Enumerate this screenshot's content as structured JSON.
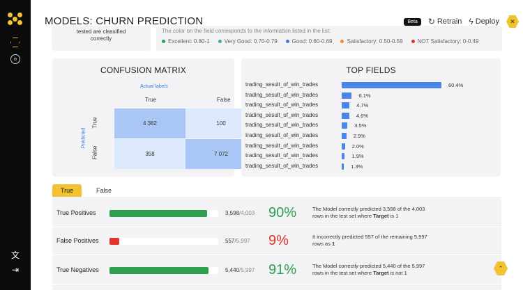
{
  "app": {
    "title": "MODELS: CHURN PREDICTION"
  },
  "nav": {
    "logo": "logo-icon",
    "items": [
      "list-hex-icon",
      "model-hex-icon"
    ],
    "bottom": [
      "translate-icon",
      "logout-icon"
    ]
  },
  "header": {
    "beta": "Beta",
    "retrain": "Retrain",
    "deploy": "Deploy"
  },
  "info_card": {
    "text": "tested are classified correctly"
  },
  "legend": {
    "title": "The color on the field corresponds to the information listed in the list:",
    "items": [
      {
        "label": "Excellent: 0.80-1",
        "color": "#2e9e4f"
      },
      {
        "label": "Very Good: 0.70-0.79",
        "color": "#3fa7a0"
      },
      {
        "label": "Good: 0.60-0.69",
        "color": "#3a78e0"
      },
      {
        "label": "Satisfactory: 0.50-0.59",
        "color": "#f08a2c"
      },
      {
        "label": "NOT Satisfactory: 0-0.49",
        "color": "#e0342c"
      }
    ]
  },
  "confusion_matrix": {
    "title": "CONFUSION MATRIX",
    "actual_label": "Actual labels",
    "predicted_label": "Predicted",
    "columns": [
      "True",
      "False"
    ],
    "rows": [
      "True",
      "False"
    ],
    "cells": [
      [
        "4 362",
        "100"
      ],
      [
        "358",
        "7 072"
      ]
    ],
    "cell_colors": [
      [
        "#a9c6f4",
        "#dce8fb"
      ],
      [
        "#dce8fb",
        "#a9c6f4"
      ]
    ]
  },
  "top_fields": {
    "title": "TOP FIELDS",
    "items": [
      {
        "label": "trading_sesult_of_win_trades",
        "value": 60.4,
        "text": "60.4%"
      },
      {
        "label": "trading_sesult_of_win_trades",
        "value": 6.1,
        "text": "6.1%"
      },
      {
        "label": "trading_sesult_of_win_trades",
        "value": 4.7,
        "text": "4.7%"
      },
      {
        "label": "trading_sesult_of_win_trades",
        "value": 4.6,
        "text": "4.6%"
      },
      {
        "label": "trading_sesult_of_win_trades",
        "value": 3.5,
        "text": "3.5%"
      },
      {
        "label": "trading_sesult_of_win_trades",
        "value": 2.9,
        "text": "2.9%"
      },
      {
        "label": "trading_sesult_of_win_trades",
        "value": 2.0,
        "text": "2.0%"
      },
      {
        "label": "trading_sesult_of_win_trades",
        "value": 1.9,
        "text": "1.9%"
      },
      {
        "label": "trading_sesult_of_win_trades",
        "value": 1.3,
        "text": "1.3%"
      }
    ]
  },
  "tabs": {
    "true": "True",
    "false": "False"
  },
  "metrics": [
    {
      "label": "True Positives",
      "count": "3,598",
      "total": "/4,003",
      "fill": 0.9,
      "fill_color": "#2e9e4f",
      "pct": "90%",
      "pct_color": "#2e9e4f",
      "desc_pre": "The Model correctly predicted 3,598 of the 4,003 rows in the test set where ",
      "desc_bold": "Target",
      "desc_post": " is 1"
    },
    {
      "label": "False Positives",
      "count": "557",
      "total": "/5,997",
      "fill": 0.09,
      "fill_color": "#e0342c",
      "pct": "9%",
      "pct_color": "#e0342c",
      "desc_pre": "It incorrectly predicted 557 of the remaining 5,997 rows as ",
      "desc_bold": "1",
      "desc_post": ""
    },
    {
      "label": "True Negatives",
      "count": "5,440",
      "total": "/5,997",
      "fill": 0.91,
      "fill_color": "#2e9e4f",
      "pct": "91%",
      "pct_color": "#2e9e4f",
      "desc_pre": "The Model correctly predicted 5,440 of the 5,997 rows in the test set where ",
      "desc_bold": "Target",
      "desc_post": " is not 1"
    }
  ]
}
